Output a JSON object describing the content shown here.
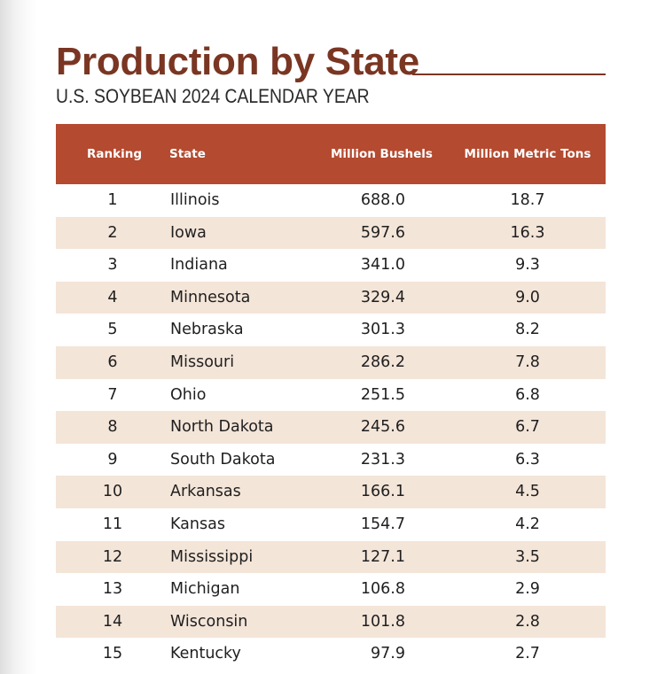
{
  "title": "Production by State",
  "subtitle": "U.S. SOYBEAN 2024 CALENDAR YEAR",
  "colors": {
    "title": "#7a3622",
    "header_bg": "#b44a30",
    "alt_row_bg": "#f4e5d9"
  },
  "table": {
    "headers": {
      "ranking": "Ranking",
      "state": "State",
      "bushels": "Million Bushels",
      "metric_tons": "Million Metric Tons"
    },
    "rows": [
      {
        "rank": "1",
        "state": "Illinois",
        "bushels": "688.0",
        "metric_tons": "18.7"
      },
      {
        "rank": "2",
        "state": "Iowa",
        "bushels": "597.6",
        "metric_tons": "16.3"
      },
      {
        "rank": "3",
        "state": "Indiana",
        "bushels": "341.0",
        "metric_tons": "9.3"
      },
      {
        "rank": "4",
        "state": "Minnesota",
        "bushels": "329.4",
        "metric_tons": "9.0"
      },
      {
        "rank": "5",
        "state": "Nebraska",
        "bushels": "301.3",
        "metric_tons": "8.2"
      },
      {
        "rank": "6",
        "state": "Missouri",
        "bushels": "286.2",
        "metric_tons": "7.8"
      },
      {
        "rank": "7",
        "state": "Ohio",
        "bushels": "251.5",
        "metric_tons": "6.8"
      },
      {
        "rank": "8",
        "state": "North Dakota",
        "bushels": "245.6",
        "metric_tons": "6.7"
      },
      {
        "rank": "9",
        "state": "South Dakota",
        "bushels": "231.3",
        "metric_tons": "6.3"
      },
      {
        "rank": "10",
        "state": "Arkansas",
        "bushels": "166.1",
        "metric_tons": "4.5"
      },
      {
        "rank": "11",
        "state": "Kansas",
        "bushels": "154.7",
        "metric_tons": "4.2"
      },
      {
        "rank": "12",
        "state": "Mississippi",
        "bushels": "127.1",
        "metric_tons": "3.5"
      },
      {
        "rank": "13",
        "state": "Michigan",
        "bushels": "106.8",
        "metric_tons": "2.9"
      },
      {
        "rank": "14",
        "state": "Wisconsin",
        "bushels": "101.8",
        "metric_tons": "2.8"
      },
      {
        "rank": "15",
        "state": "Kentucky",
        "bushels": "97.9",
        "metric_tons": "2.7"
      }
    ]
  }
}
